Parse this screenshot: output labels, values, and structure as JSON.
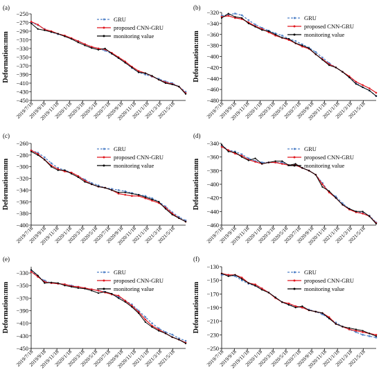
{
  "figure": {
    "x_ticks": [
      "2019/7/18",
      "2019/9/18",
      "2019/11/18",
      "2020/1/18",
      "2020/3/18",
      "2020/5/18",
      "2020/7/18",
      "2020/9/18",
      "2020/11/18",
      "2021/1/18",
      "2021/3/18",
      "2021/5/18"
    ],
    "ylabel": "Deformation:mm",
    "legend": {
      "gru": "GRU",
      "cnn": "proposed CNN-GRU",
      "mon": "monitoring value"
    },
    "colors": {
      "gru": "#4f81c7",
      "cnn": "#e0151c",
      "mon": "#000000"
    }
  },
  "chart_data": [
    {
      "panel": "(a)",
      "type": "line",
      "ylabel": "Deformation:mm",
      "ylim": [
        -450,
        -250
      ],
      "yticks": [
        -250,
        -270,
        -290,
        -310,
        -330,
        -350,
        -370,
        -390,
        -410,
        -430,
        -450
      ],
      "x": [
        "2019/7/18",
        "2019/8/18",
        "2019/9/18",
        "2019/10/18",
        "2019/11/18",
        "2019/12/18",
        "2020/1/18",
        "2020/2/18",
        "2020/3/18",
        "2020/4/18",
        "2020/5/18",
        "2020/6/18",
        "2020/7/18",
        "2020/8/18",
        "2020/9/18",
        "2020/10/18",
        "2020/11/18",
        "2020/12/18",
        "2021/1/18",
        "2021/2/18",
        "2021/3/18",
        "2021/4/18",
        "2021/5/18",
        "2021/6/18"
      ],
      "series": [
        {
          "name": "GRU",
          "values": [
            -270,
            -276,
            -285,
            -292,
            -297,
            -301,
            -307,
            -313,
            -320,
            -327,
            -330,
            -335,
            -342,
            -352,
            -362,
            -375,
            -385,
            -390,
            -395,
            -400,
            -406,
            -410,
            -418,
            -430
          ]
        },
        {
          "name": "proposed CNN-GRU",
          "values": [
            -268,
            -275,
            -286,
            -290,
            -296,
            -300,
            -306,
            -313,
            -320,
            -326,
            -330,
            -332,
            -340,
            -350,
            -360,
            -372,
            -382,
            -387,
            -394,
            -402,
            -408,
            -412,
            -418,
            -433
          ]
        },
        {
          "name": "monitoring value",
          "values": [
            -272,
            -285,
            -288,
            -292,
            -296,
            -302,
            -308,
            -316,
            -323,
            -329,
            -333,
            -330,
            -342,
            -352,
            -363,
            -374,
            -385,
            -387,
            -393,
            -402,
            -410,
            -413,
            -418,
            -435
          ]
        }
      ]
    },
    {
      "panel": "(b)",
      "type": "line",
      "ylabel": "Deformation:mm",
      "ylim": [
        -480,
        -320
      ],
      "yticks": [
        -320,
        -340,
        -360,
        -380,
        -400,
        -420,
        -440,
        -460,
        -480
      ],
      "x": [
        "2019/7/18",
        "2019/8/18",
        "2019/9/18",
        "2019/10/18",
        "2019/11/18",
        "2019/12/18",
        "2020/1/18",
        "2020/2/18",
        "2020/3/18",
        "2020/4/18",
        "2020/5/18",
        "2020/6/18",
        "2020/7/18",
        "2020/8/18",
        "2020/9/18",
        "2020/10/18",
        "2020/11/18",
        "2020/12/18",
        "2021/1/18",
        "2021/2/18",
        "2021/3/18",
        "2021/4/18",
        "2021/5/18",
        "2021/6/18"
      ],
      "series": [
        {
          "name": "GRU",
          "values": [
            -326,
            -324,
            -322,
            -325,
            -334,
            -342,
            -348,
            -353,
            -358,
            -362,
            -368,
            -372,
            -378,
            -384,
            -392,
            -402,
            -412,
            -420,
            -428,
            -438,
            -448,
            -456,
            -462,
            -472
          ]
        },
        {
          "name": "proposed CNN-GRU",
          "values": [
            -328,
            -326,
            -330,
            -332,
            -338,
            -345,
            -350,
            -356,
            -362,
            -366,
            -370,
            -376,
            -382,
            -386,
            -396,
            -405,
            -414,
            -420,
            -428,
            -436,
            -446,
            -452,
            -458,
            -466
          ]
        },
        {
          "name": "monitoring value",
          "values": [
            -330,
            -322,
            -328,
            -330,
            -340,
            -346,
            -352,
            -354,
            -360,
            -366,
            -368,
            -376,
            -380,
            -385,
            -396,
            -406,
            -416,
            -420,
            -428,
            -438,
            -450,
            -456,
            -462,
            -472
          ]
        }
      ]
    },
    {
      "panel": "(c)",
      "type": "line",
      "ylabel": "Deformation:mm",
      "ylim": [
        -400,
        -260
      ],
      "yticks": [
        -260,
        -280,
        -300,
        -320,
        -340,
        -360,
        -380,
        -400
      ],
      "x": [
        "2019/7/18",
        "2019/8/18",
        "2019/9/18",
        "2019/10/18",
        "2019/11/18",
        "2019/12/18",
        "2020/1/18",
        "2020/2/18",
        "2020/3/18",
        "2020/4/18",
        "2020/5/18",
        "2020/6/18",
        "2020/7/18",
        "2020/8/18",
        "2020/9/18",
        "2020/10/18",
        "2020/11/18",
        "2020/12/18",
        "2021/1/18",
        "2021/2/18",
        "2021/3/18",
        "2021/4/18",
        "2021/5/18",
        "2021/6/18"
      ],
      "series": [
        {
          "name": "GRU",
          "values": [
            -272,
            -276,
            -284,
            -294,
            -302,
            -306,
            -310,
            -316,
            -322,
            -328,
            -332,
            -336,
            -338,
            -340,
            -342,
            -345,
            -348,
            -350,
            -354,
            -360,
            -368,
            -378,
            -386,
            -392
          ]
        },
        {
          "name": "proposed CNN-GRU",
          "values": [
            -272,
            -278,
            -288,
            -298,
            -304,
            -308,
            -310,
            -316,
            -324,
            -330,
            -334,
            -336,
            -340,
            -346,
            -348,
            -350,
            -350,
            -354,
            -358,
            -362,
            -370,
            -380,
            -388,
            -394
          ]
        },
        {
          "name": "monitoring value",
          "values": [
            -274,
            -280,
            -288,
            -300,
            -306,
            -306,
            -312,
            -318,
            -326,
            -330,
            -334,
            -336,
            -340,
            -344,
            -344,
            -346,
            -348,
            -352,
            -356,
            -360,
            -372,
            -382,
            -388,
            -394
          ]
        }
      ]
    },
    {
      "panel": "(d)",
      "type": "line",
      "ylabel": "Deformation:mm",
      "ylim": [
        -460,
        -340
      ],
      "yticks": [
        -340,
        -360,
        -380,
        -400,
        -420,
        -440,
        -460
      ],
      "x": [
        "2019/7/18",
        "2019/8/18",
        "2019/9/18",
        "2019/10/18",
        "2019/11/18",
        "2019/12/18",
        "2020/1/18",
        "2020/2/18",
        "2020/3/18",
        "2020/4/18",
        "2020/5/18",
        "2020/6/18",
        "2020/7/18",
        "2020/8/18",
        "2020/9/18",
        "2020/10/18",
        "2020/11/18",
        "2020/12/18",
        "2021/1/18",
        "2021/2/18",
        "2021/3/18",
        "2021/4/18",
        "2021/5/18",
        "2021/6/18"
      ],
      "series": [
        {
          "name": "GRU",
          "values": [
            -343,
            -350,
            -352,
            -356,
            -362,
            -366,
            -368,
            -368,
            -368,
            -368,
            -372,
            -372,
            -376,
            -380,
            -386,
            -398,
            -412,
            -418,
            -428,
            -436,
            -440,
            -442,
            -446,
            -456
          ]
        },
        {
          "name": "proposed CNN-GRU",
          "values": [
            -345,
            -350,
            -355,
            -358,
            -364,
            -367,
            -370,
            -368,
            -368,
            -370,
            -372,
            -372,
            -376,
            -380,
            -386,
            -400,
            -412,
            -420,
            -430,
            -437,
            -441,
            -443,
            -447,
            -457
          ]
        },
        {
          "name": "monitoring value",
          "values": [
            -342,
            -352,
            -353,
            -360,
            -365,
            -362,
            -370,
            -368,
            -366,
            -366,
            -372,
            -370,
            -376,
            -380,
            -386,
            -404,
            -410,
            -420,
            -430,
            -436,
            -440,
            -440,
            -447,
            -458
          ]
        }
      ]
    },
    {
      "panel": "(e)",
      "type": "line",
      "ylabel": "Deformation:mm",
      "ylim": [
        -450,
        -320
      ],
      "yticks": [
        -330,
        -350,
        -370,
        -390,
        -410,
        -430,
        -450
      ],
      "x": [
        "2019/7/18",
        "2019/8/18",
        "2019/9/18",
        "2019/10/18",
        "2019/11/18",
        "2019/12/18",
        "2020/1/18",
        "2020/2/18",
        "2020/3/18",
        "2020/4/18",
        "2020/5/18",
        "2020/6/18",
        "2020/7/18",
        "2020/8/18",
        "2020/9/18",
        "2020/10/18",
        "2020/11/18",
        "2020/12/18",
        "2021/1/18",
        "2021/2/18",
        "2021/3/18",
        "2021/4/18",
        "2021/5/18",
        "2021/6/18"
      ],
      "series": [
        {
          "name": "GRU",
          "values": [
            -326,
            -336,
            -342,
            -346,
            -347,
            -348,
            -350,
            -352,
            -354,
            -356,
            -358,
            -360,
            -364,
            -368,
            -374,
            -380,
            -390,
            -400,
            -410,
            -418,
            -424,
            -428,
            -434,
            -438
          ]
        },
        {
          "name": "proposed CNN-GRU",
          "values": [
            -328,
            -336,
            -344,
            -346,
            -347,
            -348,
            -351,
            -352,
            -354,
            -356,
            -358,
            -361,
            -364,
            -366,
            -374,
            -382,
            -392,
            -404,
            -414,
            -420,
            -426,
            -432,
            -436,
            -441
          ]
        },
        {
          "name": "monitoring value",
          "values": [
            -325,
            -334,
            -346,
            -345,
            -346,
            -350,
            -352,
            -354,
            -355,
            -358,
            -362,
            -360,
            -363,
            -370,
            -376,
            -384,
            -394,
            -408,
            -416,
            -422,
            -426,
            -432,
            -436,
            -442
          ]
        }
      ]
    },
    {
      "panel": "(f)",
      "type": "line",
      "ylabel": "Deformation:mm",
      "ylim": [
        -250,
        -130
      ],
      "yticks": [
        -130,
        -150,
        -170,
        -190,
        -210,
        -230,
        -250
      ],
      "x": [
        "2019/7/18",
        "2019/8/18",
        "2019/9/18",
        "2019/10/18",
        "2019/11/18",
        "2019/12/18",
        "2020/1/18",
        "2020/2/18",
        "2020/3/18",
        "2020/4/18",
        "2020/5/18",
        "2020/6/18",
        "2020/7/18",
        "2020/8/18",
        "2020/9/18",
        "2020/10/18",
        "2020/11/18",
        "2020/12/18",
        "2021/1/18",
        "2021/2/18",
        "2021/3/18",
        "2021/4/18",
        "2021/5/18",
        "2021/6/18"
      ],
      "series": [
        {
          "name": "GRU",
          "values": [
            -142,
            -142,
            -144,
            -150,
            -155,
            -158,
            -162,
            -168,
            -175,
            -182,
            -186,
            -188,
            -190,
            -193,
            -196,
            -200,
            -206,
            -212,
            -218,
            -222,
            -226,
            -230,
            -232,
            -234
          ]
        },
        {
          "name": "proposed CNN-GRU",
          "values": [
            -140,
            -142,
            -142,
            -146,
            -154,
            -156,
            -162,
            -168,
            -176,
            -182,
            -184,
            -188,
            -190,
            -194,
            -196,
            -198,
            -204,
            -214,
            -218,
            -222,
            -224,
            -226,
            -228,
            -230
          ]
        },
        {
          "name": "monitoring value",
          "values": [
            -140,
            -144,
            -142,
            -148,
            -154,
            -158,
            -164,
            -168,
            -175,
            -182,
            -186,
            -190,
            -188,
            -194,
            -196,
            -198,
            -206,
            -214,
            -218,
            -220,
            -222,
            -224,
            -228,
            -232
          ]
        }
      ]
    }
  ]
}
